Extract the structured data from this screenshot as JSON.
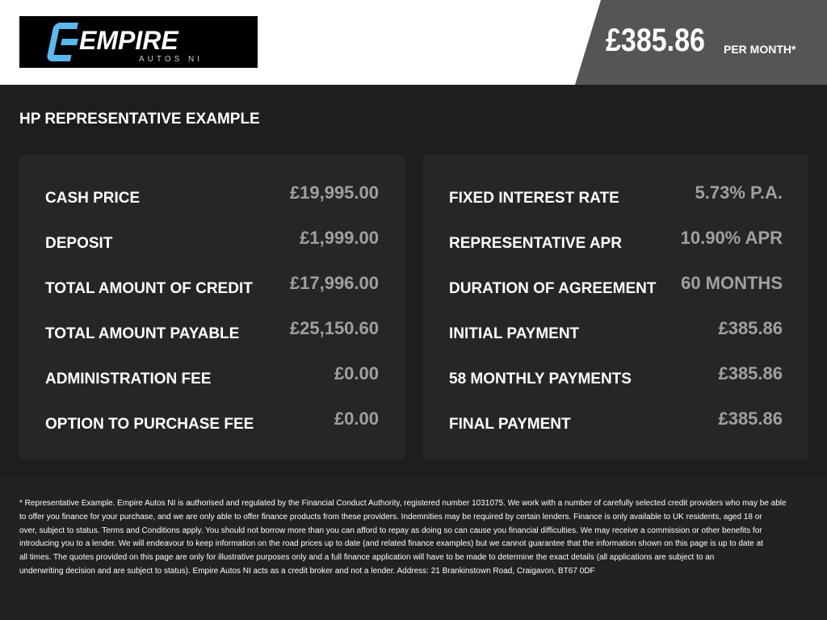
{
  "header": {
    "logo_text": "EMPIRE",
    "logo_subtext": "AUTOS NI",
    "brand_color": "#5bb8ec",
    "monthly_price": "£385.86",
    "per_month_label": "PER MONTH*"
  },
  "section_title": "HP REPRESENTATIVE EXAMPLE",
  "left_panel": [
    {
      "label": "CASH PRICE",
      "value": "£19,995.00"
    },
    {
      "label": "DEPOSIT",
      "value": "£1,999.00"
    },
    {
      "label": "TOTAL AMOUNT OF CREDIT",
      "value": "£17,996.00"
    },
    {
      "label": "TOTAL AMOUNT PAYABLE",
      "value": "£25,150.60"
    },
    {
      "label": "ADMINISTRATION FEE",
      "value": "£0.00"
    },
    {
      "label": "OPTION TO PURCHASE FEE",
      "value": "£0.00"
    }
  ],
  "right_panel": [
    {
      "label": "FIXED INTEREST RATE",
      "value": "5.73% P.A."
    },
    {
      "label": "REPRESENTATIVE APR",
      "value": "10.90% APR"
    },
    {
      "label": "DURATION OF AGREEMENT",
      "value": "60 MONTHS"
    },
    {
      "label": "INITIAL PAYMENT",
      "value": "£385.86"
    },
    {
      "label": "58 MONTHLY PAYMENTS",
      "value": "£385.86"
    },
    {
      "label": "FINAL PAYMENT",
      "value": "£385.86"
    }
  ],
  "disclaimer_lines": [
    "* Representative Example. Empire Autos NI is authorised and regulated by the Financial Conduct Authority, registered number 1031075. We work with a number of carefully selected credit providers who may be able",
    "to offer you finance for your purchase, and we are only able to offer finance products from these providers. Indemnities may be required by certain lenders. Finance is only available to UK residents, aged 18 or",
    "over, subject to status. Terms and Conditions apply. You should not borrow more than you can afford to repay as doing so can cause you financial difficulties. We may receive a commission or other benefits for",
    "introducing you to a lender. We will endeavour to keep information on the road prices up to date (and related finance examples) but we cannot guarantee that the information shown on this page is up to date at",
    "all times. The quotes provided on this page are only for illustrative purposes only and a full finance application will have to be made to determine the exact details (all applications are subject to an",
    "underwriting decision and are subject to status). Empire Autos NI acts as a credit broker and not a lender. Address: 21 Brankinstown Road, Craigavon, BT67 0DF"
  ]
}
